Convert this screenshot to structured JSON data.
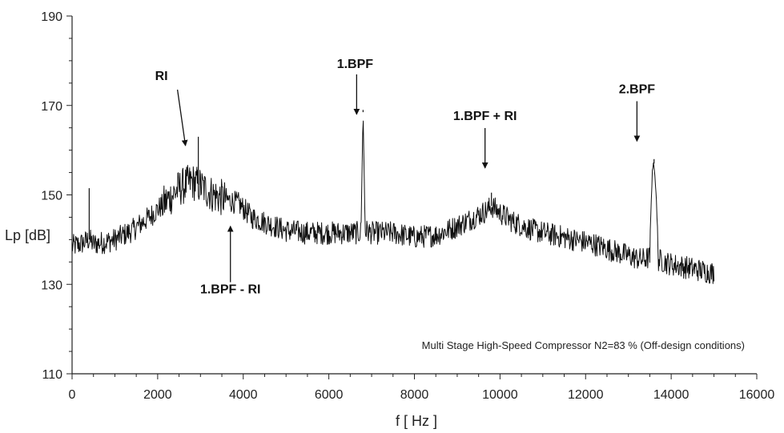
{
  "chart_data": {
    "type": "line",
    "title": "",
    "xlabel": "f   [ Hz ]",
    "ylabel": "Lp [dB]",
    "xlim": [
      0,
      16000
    ],
    "ylim": [
      110,
      190
    ],
    "x_ticks": [
      0,
      2000,
      4000,
      6000,
      8000,
      10000,
      12000,
      14000,
      16000
    ],
    "y_ticks": [
      110,
      130,
      150,
      170,
      190
    ],
    "grid": false,
    "note": "Multi Stage High-Speed Compressor  N2=83 % (Off-design conditions)",
    "series": [
      {
        "x": [
          0,
          200,
          400,
          500,
          800,
          1000,
          1400,
          1800,
          2200,
          2500,
          2800,
          3000,
          3300,
          3600,
          3900,
          4200,
          4600,
          5000,
          5500,
          6000,
          6500,
          6750,
          6800,
          6850,
          7000,
          7500,
          8000,
          8500,
          9000,
          9400,
          9700,
          9800,
          10000,
          10300,
          10800,
          11500,
          12200,
          12800,
          13300,
          13500,
          13560,
          13600,
          13650,
          13700,
          14000,
          14500,
          15000
        ],
        "y": [
          138.5,
          139,
          140,
          139,
          139.5,
          140,
          142,
          145,
          148.5,
          151.5,
          153,
          152,
          150,
          149,
          148,
          145,
          143.5,
          142,
          141.5,
          141.5,
          141.5,
          141.5,
          168.5,
          142,
          141.5,
          141.5,
          140.5,
          141,
          143,
          145,
          146.5,
          147.5,
          146,
          144,
          142,
          140.5,
          139,
          137,
          135.5,
          136,
          156,
          157,
          150,
          135.5,
          134.5,
          133.5,
          132.5
        ]
      }
    ],
    "spikes": [
      {
        "x": 400,
        "y": 151.5
      },
      {
        "x": 2950,
        "y": 163
      },
      {
        "x": 6800,
        "y": 169
      },
      {
        "x": 9800,
        "y": 150.5
      },
      {
        "x": 13600,
        "y": 158
      }
    ],
    "annotations": [
      {
        "label": "RI",
        "target_x": 2650,
        "target_y": 161
      },
      {
        "label": "1.BPF",
        "target_x": 6650,
        "target_y": 168
      },
      {
        "label": "1.BPF + RI",
        "target_x": 9650,
        "target_y": 156
      },
      {
        "label": "2.BPF",
        "target_x": 13200,
        "target_y": 162
      },
      {
        "label": "1.BPF - RI",
        "target_x": 3700,
        "target_y": 143
      }
    ]
  }
}
